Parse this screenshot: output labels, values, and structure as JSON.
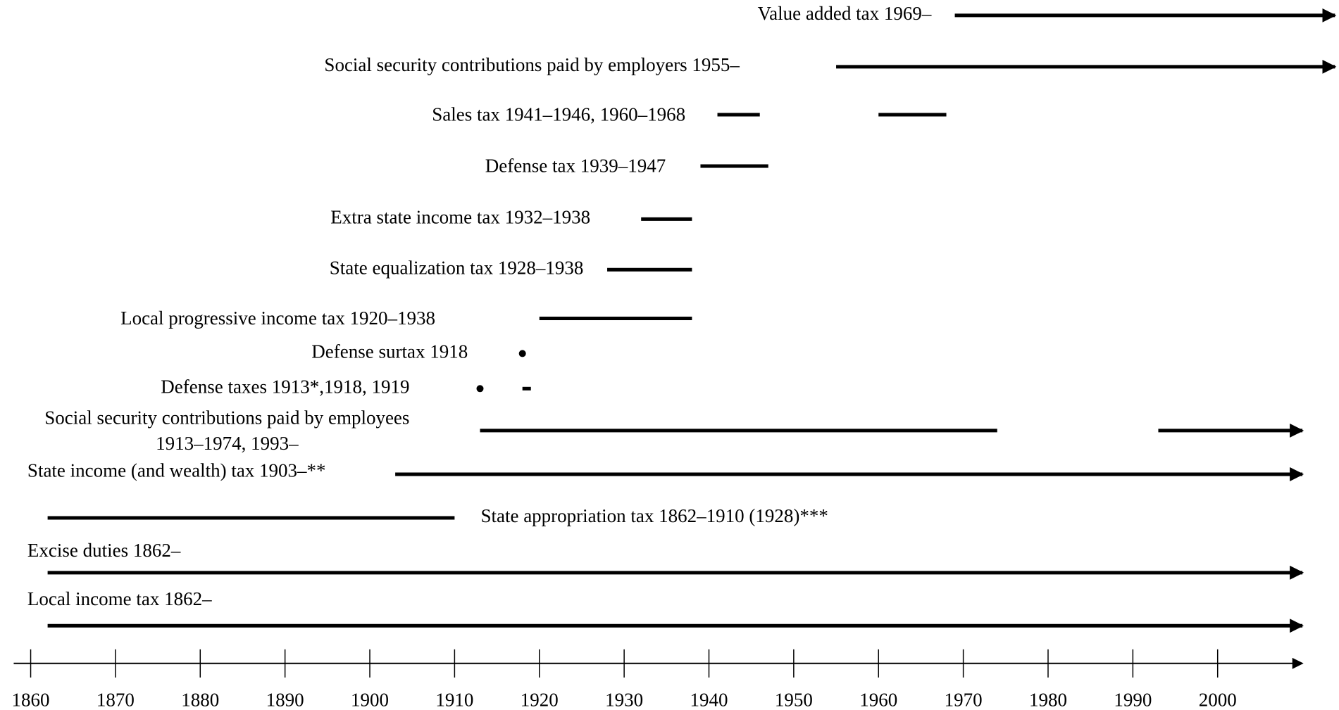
{
  "chart_data": {
    "type": "timeline",
    "xlim": [
      1858,
      2010
    ],
    "xticks": [
      1860,
      1870,
      1880,
      1890,
      1900,
      1910,
      1920,
      1930,
      1940,
      1950,
      1960,
      1970,
      1980,
      1990,
      2000
    ],
    "items": [
      {
        "label": [
          "Value added tax 1969–"
        ],
        "segments": [
          [
            1969,
            null
          ]
        ],
        "points": []
      },
      {
        "label": [
          "Social security contributions paid by employers 1955–"
        ],
        "segments": [
          [
            1955,
            null
          ]
        ],
        "points": []
      },
      {
        "label": [
          "Sales tax 1941–1946, 1960–1968"
        ],
        "segments": [
          [
            1941,
            1946
          ],
          [
            1960,
            1968
          ]
        ],
        "points": []
      },
      {
        "label": [
          "Defense tax 1939–1947"
        ],
        "segments": [
          [
            1939,
            1947
          ]
        ],
        "points": []
      },
      {
        "label": [
          "Extra state income tax 1932–1938"
        ],
        "segments": [
          [
            1932,
            1938
          ]
        ],
        "points": []
      },
      {
        "label": [
          "State equalization tax 1928–1938"
        ],
        "segments": [
          [
            1928,
            1938
          ]
        ],
        "points": []
      },
      {
        "label": [
          "Local progressive income tax 1920–1938"
        ],
        "segments": [
          [
            1920,
            1938
          ]
        ],
        "points": []
      },
      {
        "label": [
          "Defense surtax 1918"
        ],
        "segments": [],
        "points": [
          1918
        ]
      },
      {
        "label": [
          "Defense taxes 1913*,1918, 1919"
        ],
        "segments": [
          [
            1918,
            1919
          ]
        ],
        "points": [
          1913
        ]
      },
      {
        "label": [
          "Social security contributions paid by employees",
          "1913–1974, 1993–"
        ],
        "segments": [
          [
            1913,
            1974
          ],
          [
            1993,
            null
          ]
        ],
        "points": []
      },
      {
        "label": [
          "State income (and wealth) tax 1903–**"
        ],
        "segments": [
          [
            1903,
            null
          ]
        ],
        "points": []
      },
      {
        "label": [
          "State appropriation tax 1862–1910 (1928)***"
        ],
        "segments": [
          [
            1862,
            1910
          ]
        ],
        "points": []
      },
      {
        "label": [
          "Excise duties 1862–"
        ],
        "segments": [
          [
            1862,
            null
          ]
        ],
        "points": []
      },
      {
        "label": [
          "Local income tax 1862–"
        ],
        "segments": [
          [
            1862,
            null
          ]
        ],
        "points": []
      }
    ]
  }
}
